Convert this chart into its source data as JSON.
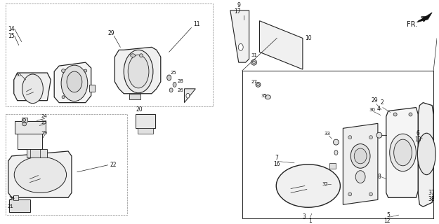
{
  "bg_color": "#ffffff",
  "line_color": "#222222",
  "fig_width": 6.25,
  "fig_height": 3.2,
  "dpi": 100
}
